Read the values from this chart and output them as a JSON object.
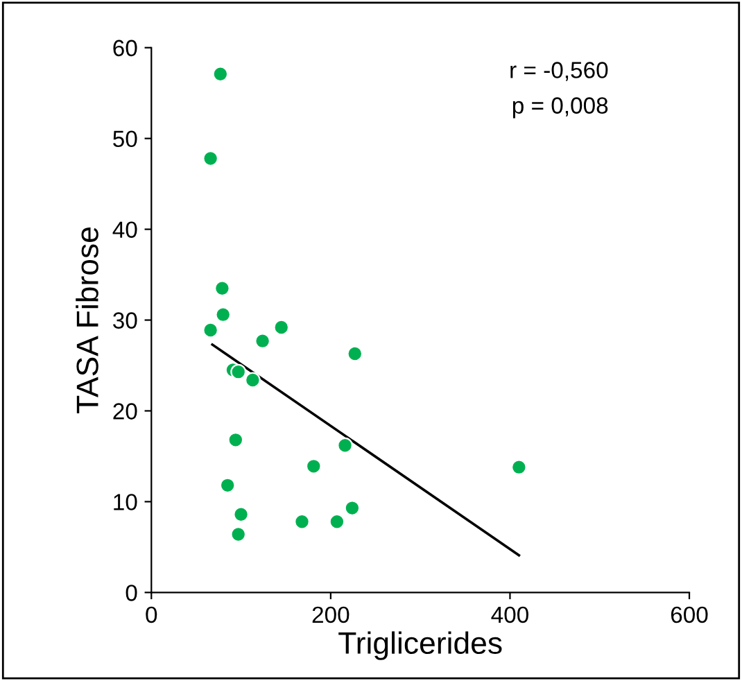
{
  "chart_data": {
    "type": "scatter",
    "xlabel": "Triglicerides",
    "ylabel": "TASA Fibrose",
    "annotations": [
      "r = -0,560",
      "p = 0,008"
    ],
    "series": [
      {
        "color": "#00b050",
        "marker": "circle",
        "x": [
          77,
          66,
          79,
          80,
          66,
          124,
          145,
          227,
          91,
          97,
          113,
          94,
          216,
          181,
          410,
          85,
          100,
          224,
          168,
          207,
          97
        ],
        "values": [
          57.1,
          47.8,
          33.5,
          30.6,
          28.9,
          27.7,
          29.2,
          26.3,
          24.5,
          24.3,
          23.4,
          16.8,
          16.2,
          13.9,
          13.8,
          11.8,
          8.6,
          9.3,
          7.8,
          7.8,
          6.4
        ]
      },
      {
        "type": "line",
        "color": "#000000",
        "marker": "none",
        "x": [
          68,
          410
        ],
        "values": [
          27.3,
          4.1
        ]
      }
    ],
    "xlim": [
      0,
      600
    ],
    "xticks": [
      0,
      200,
      400,
      600
    ],
    "ylim": [
      0,
      60
    ],
    "yticks": [
      0,
      10,
      20,
      30,
      40,
      50,
      60
    ],
    "grid": false,
    "legend": false
  }
}
